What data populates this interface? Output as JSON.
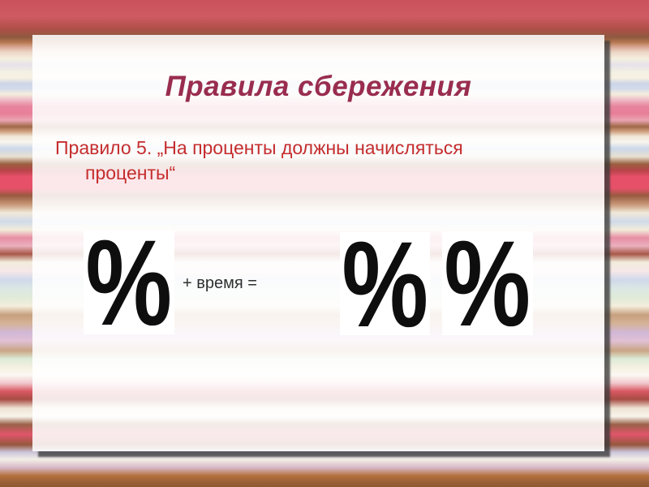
{
  "slide": {
    "title": "Правила сбережения",
    "rule_text": {
      "line1": "Правило 5. „На проценты должны начисляться",
      "line2": "проценты“"
    },
    "equation": {
      "percent_left": "%",
      "operator_label": "+ время =",
      "percent_result_1": "%",
      "percent_result_2": "%"
    },
    "colors": {
      "title": "#992d4f",
      "body_text": "#c52d2d",
      "equation_text": "#2f2f2f",
      "percent_glyph": "#0e0e0e",
      "top_band_red": "#d05a62",
      "stripe_crimson": "#e8506a",
      "stripe_brown": "#9a6040",
      "card_shadow": "#3a3a3a"
    }
  }
}
